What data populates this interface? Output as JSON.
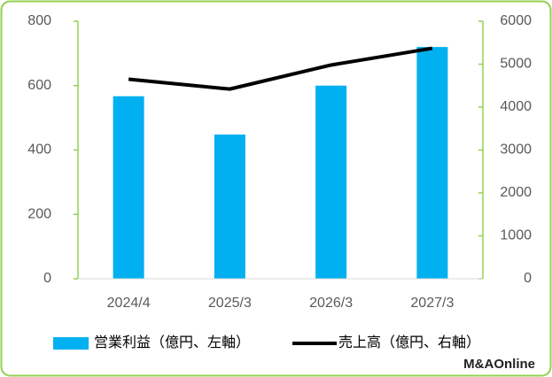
{
  "chart_data": {
    "type": "bar",
    "categories": [
      "2024/4",
      "2025/3",
      "2026/3",
      "2027/3"
    ],
    "series": [
      {
        "name": "営業利益（億円、左軸）",
        "type": "bar",
        "color": "#00b0f0",
        "values": [
          567,
          448,
          600,
          720
        ]
      },
      {
        "name": "売上高（億円、右軸）",
        "type": "line",
        "axis": "y2",
        "color": "#000000",
        "values": [
          4650,
          4420,
          4980,
          5370
        ]
      }
    ],
    "ylim": [
      0,
      800
    ],
    "yticks": [
      0,
      200,
      400,
      600,
      800
    ],
    "y2lim": [
      0,
      6000
    ],
    "y2ticks": [
      0,
      1000,
      2000,
      3000,
      4000,
      5000,
      6000
    ],
    "axis_color": "#92d050",
    "legend": "bottom",
    "logo": "M&AOnline"
  }
}
